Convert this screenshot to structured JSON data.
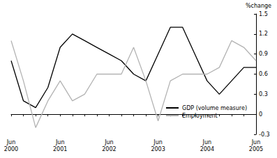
{
  "chart_data": {
    "type": "line",
    "y_label": "%change",
    "categories": [
      "Jun\n2000",
      null,
      null,
      null,
      "Jun\n2001",
      null,
      null,
      null,
      "Jun\n2002",
      null,
      null,
      null,
      "Jun\n2003",
      null,
      null,
      null,
      "Jun\n2004",
      null,
      null,
      null,
      "Jun\n2005"
    ],
    "series": [
      {
        "name": "GDP (volume measure)",
        "color": "#000000",
        "values": [
          0.8,
          0.2,
          0.1,
          0.4,
          1.0,
          1.2,
          1.1,
          1.0,
          0.9,
          0.8,
          0.6,
          0.5,
          0.9,
          1.3,
          1.3,
          0.9,
          0.5,
          0.3,
          0.5,
          0.7,
          0.7
        ]
      },
      {
        "name": "Employment",
        "color": "#b3b3b3",
        "values": [
          1.1,
          0.5,
          -0.2,
          0.2,
          0.5,
          0.2,
          0.3,
          0.6,
          0.6,
          0.6,
          1.0,
          0.5,
          -0.1,
          0.5,
          0.6,
          0.6,
          0.6,
          0.7,
          1.1,
          1.0,
          0.8
        ]
      }
    ],
    "ylim": [
      -0.3,
      1.5
    ],
    "yticks": [
      -0.3,
      0,
      0.3,
      0.6,
      0.9,
      1.2,
      1.5
    ],
    "grid": false,
    "legend": "lower right"
  }
}
